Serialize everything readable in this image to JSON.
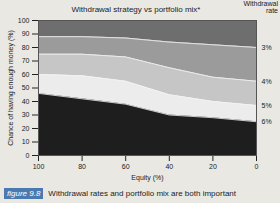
{
  "chart_data": {
    "type": "area",
    "title": "Withdrawal strategy vs portfolio mix*",
    "legend_title": "Withdrawal rate",
    "x_label": "Equity (%)",
    "y_label": "Chance of having enough money (%)",
    "figure_label": "figure 9.8",
    "caption": "Withdrawal rates and portfolio mix are both important",
    "x": [
      100,
      80,
      60,
      40,
      20,
      0
    ],
    "series": [
      {
        "name": "3%",
        "color": "#9b9b9b",
        "values": [
          88,
          88,
          87,
          84,
          82,
          80
        ]
      },
      {
        "name": "4%",
        "color": "#c6c6c6",
        "values": [
          75,
          75,
          73,
          65,
          58,
          55
        ]
      },
      {
        "name": "5%",
        "color": "#ececec",
        "values": [
          60,
          59,
          55,
          45,
          40,
          37
        ]
      },
      {
        "name": "6%",
        "color": "#b4b4b4",
        "values": [
          46,
          42,
          38,
          30,
          28,
          25
        ]
      }
    ],
    "xlim": [
      100,
      0
    ],
    "xticks": [
      100,
      80,
      60,
      40,
      20,
      0
    ],
    "ylim": [
      0,
      100
    ],
    "yticks": [
      0,
      10,
      20,
      30,
      40,
      50,
      60,
      70,
      80,
      90,
      100
    ]
  }
}
